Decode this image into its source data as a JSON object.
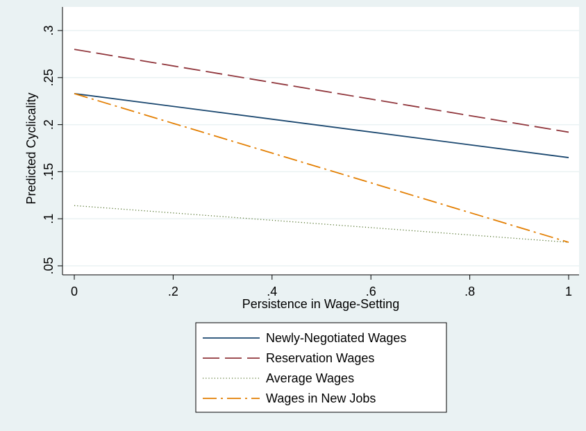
{
  "chart_data": {
    "type": "line",
    "xlabel": "Persistence in Wage-Setting",
    "ylabel": "Predicted Cyclicality",
    "xlim": [
      0,
      1
    ],
    "ylim": [
      0.05,
      0.3
    ],
    "x_ticks": [
      0,
      0.2,
      0.4,
      0.6,
      0.8,
      1
    ],
    "x_tick_labels": [
      "0",
      ".2",
      ".4",
      ".6",
      ".8",
      "1"
    ],
    "y_ticks": [
      0.05,
      0.1,
      0.15,
      0.2,
      0.25,
      0.3
    ],
    "y_tick_labels": [
      ".05",
      ".1",
      ".15",
      ".2",
      ".25",
      ".3"
    ],
    "grid": "horizontal",
    "legend_position": "bottom",
    "series": [
      {
        "name": "Newly-Negotiated Wages",
        "color": "#1a476f",
        "style": "solid",
        "x": [
          0,
          1
        ],
        "y": [
          0.233,
          0.165
        ]
      },
      {
        "name": "Reservation Wages",
        "color": "#90353b",
        "style": "dashed",
        "x": [
          0,
          1
        ],
        "y": [
          0.28,
          0.192
        ]
      },
      {
        "name": "Average Wages",
        "color": "#55752f",
        "style": "dotted",
        "x": [
          0,
          1
        ],
        "y": [
          0.114,
          0.075
        ]
      },
      {
        "name": "Wages in New Jobs",
        "color": "#e37e00",
        "style": "dashdot",
        "x": [
          0,
          1
        ],
        "y": [
          0.233,
          0.075
        ]
      }
    ]
  }
}
